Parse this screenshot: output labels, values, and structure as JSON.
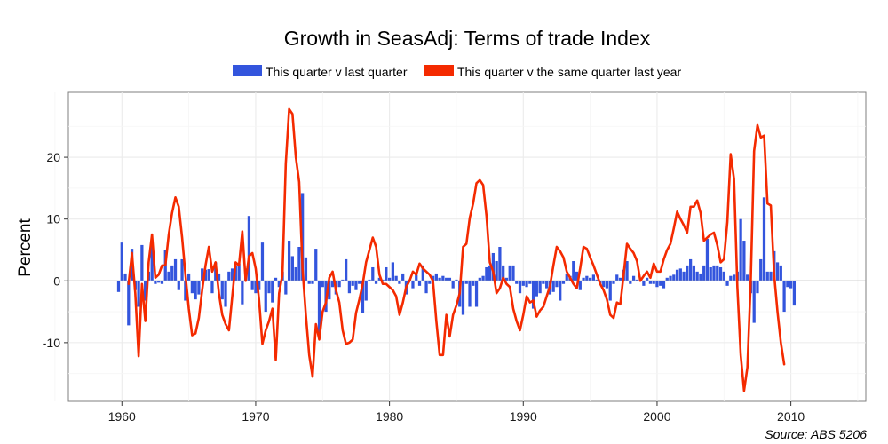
{
  "chart_data": {
    "type": "bar+line",
    "title": "Growth in SeasAdj: Terms of trade Index",
    "xlabel": "",
    "ylabel": "Percent",
    "source": "Source: ABS 5206",
    "xlim": [
      1956,
      2015.6
    ],
    "ylim": [
      -19.5,
      30.5
    ],
    "x_ticks": [
      1960,
      1970,
      1980,
      1990,
      2000,
      2010
    ],
    "x_tick_labels": [
      "1960",
      "1970",
      "1980",
      "1990",
      "2000",
      "2010"
    ],
    "y_ticks": [
      -10,
      0,
      10,
      20
    ],
    "y_tick_labels": [
      "-10",
      "0",
      "10",
      "20"
    ],
    "legend_position": "top",
    "series": [
      {
        "name": "This quarter v last quarter",
        "type": "bar",
        "color": "#3355dd",
        "x_start": 1959.75,
        "x_step": 0.25,
        "values": [
          -1.8,
          6.2,
          1.2,
          -7.2,
          5.2,
          -1.5,
          -4.2,
          5.8,
          -3.2,
          1.5,
          5.8,
          -0.5,
          -0.3,
          -0.5,
          5,
          1.5,
          2.5,
          3.5,
          -1.5,
          3.5,
          -3.2,
          1.2,
          -2,
          -3,
          -2.2,
          2,
          1.8,
          1.9,
          -2,
          3,
          1.2,
          -3,
          -4.2,
          1.5,
          2,
          2.5,
          2.8,
          -3.8,
          2,
          10.5,
          -1.5,
          -2,
          -1.5,
          6.2,
          -5,
          -2,
          -3.5,
          0.5,
          -1,
          1.5,
          -2.2,
          6.5,
          4,
          2.2,
          5.5,
          14.2,
          3.8,
          -0.5,
          -0.5,
          5.2,
          -8.8,
          -1,
          -5,
          -3,
          -1,
          -2.2,
          -1,
          0.2,
          3.5,
          -2,
          -0.8,
          -1.5,
          -0.5,
          -5.2,
          -3.2,
          0.2,
          2.2,
          -0.5,
          0.5,
          0.2,
          2.2,
          0.5,
          3,
          0.8,
          -0.5,
          1.2,
          -2.2,
          0.2,
          -1.2,
          1,
          -0.8,
          2.5,
          -2,
          -0.5,
          0.8,
          1.2,
          0.5,
          0.8,
          0.5,
          0.5,
          -1.2,
          0.2,
          -4.2,
          -5.5,
          -0.5,
          -4.2,
          -0.8,
          -4.2,
          0.5,
          0.8,
          2.2,
          2.5,
          4.5,
          3.2,
          5.5,
          2.5,
          0.5,
          2.5,
          2.5,
          -0.5,
          -2,
          -0.8,
          -1,
          -0.5,
          -4.5,
          -2.5,
          -2,
          -0.5,
          -1.2,
          -2.2,
          -1.8,
          -1,
          -3.2,
          -0.5,
          1.2,
          0.8,
          3.2,
          1.5,
          -1.5,
          0.5,
          0.8,
          0.5,
          1,
          0.2,
          -0.5,
          -1,
          -1.2,
          -3.2,
          -0.5,
          1,
          0.5,
          1.8,
          3.2,
          -0.5,
          0.8,
          0.2,
          0.5,
          -0.8,
          0.5,
          -0.5,
          -0.5,
          -1,
          -0.8,
          -1.2,
          0.5,
          0.8,
          1,
          1.8,
          2,
          1.5,
          2.5,
          3.5,
          2.5,
          1.5,
          1.2,
          2.5,
          6.8,
          2.2,
          2.5,
          2.5,
          2.2,
          1.5,
          -0.8,
          0.8,
          1,
          1.5,
          10,
          6.5,
          1,
          -2,
          -6.8,
          -2,
          3.5,
          13.5,
          1.5,
          1.5,
          4.8,
          3,
          2.5,
          -5,
          -1,
          -1.2,
          -4
        ]
      },
      {
        "name": "This quarter v the same quarter last year",
        "type": "line",
        "color": "#f42a00",
        "x_start": 1960.5,
        "x_step": 0.25,
        "values": [
          -0.5,
          4.5,
          -2,
          -12.2,
          -0.5,
          -6.5,
          3,
          7.5,
          0.5,
          1,
          2.5,
          2.5,
          7.5,
          11,
          13.5,
          12,
          7,
          1,
          -4.5,
          -8.8,
          -8.5,
          -6,
          -1.5,
          2.5,
          5.5,
          1.5,
          3,
          -2,
          -5.5,
          -7,
          -8,
          -2.5,
          3,
          2.5,
          8,
          0,
          4,
          4.5,
          2,
          -3,
          -10.2,
          -8,
          -6.5,
          -4.5,
          -12.8,
          -2,
          1,
          19,
          27.8,
          27,
          20,
          16,
          2,
          -5.5,
          -12,
          -15.5,
          -7,
          -9.5,
          -5,
          -3.5,
          0.5,
          1.5,
          -1.5,
          -3.5,
          -8,
          -10.2,
          -10,
          -9.5,
          -5.2,
          -3,
          -0.5,
          3,
          5,
          7,
          5.5,
          1,
          -0.5,
          -0.5,
          -1,
          -1.5,
          -2.5,
          -5.5,
          -3.5,
          -1,
          0,
          1.5,
          1,
          2.8,
          2,
          1.5,
          1,
          0,
          -6.5,
          -12,
          -12,
          -5.5,
          -9,
          -5.5,
          -4,
          -2,
          5.5,
          6,
          10.2,
          12.5,
          15.8,
          16.3,
          15.5,
          10.5,
          3,
          1.5,
          -2,
          -1.2,
          0.5,
          -0.5,
          -1,
          -4.5,
          -6.5,
          -8,
          -5.5,
          -2.5,
          -3.5,
          -3.2,
          -5.8,
          -4.8,
          -4.2,
          -2.5,
          -0.8,
          2.5,
          5.5,
          4.8,
          3.8,
          1.5,
          0.5,
          -0.5,
          -1.2,
          2,
          5.5,
          5.2,
          3.8,
          2.5,
          1,
          -0.5,
          -1.5,
          -3,
          -5.5,
          -6,
          -3.5,
          -3.8,
          1,
          6,
          5.2,
          4.5,
          3.2,
          0,
          0.8,
          1.5,
          0.5,
          2.8,
          1.5,
          1.5,
          3.5,
          5,
          6,
          8.5,
          11.2,
          10,
          9,
          7.8,
          12,
          12,
          13,
          11,
          6.5,
          7,
          7.5,
          7.8,
          5.8,
          3,
          3.5,
          9.5,
          20.5,
          16.5,
          -1,
          -12,
          -17.8,
          -14,
          0,
          21,
          25.2,
          23.2,
          23.5,
          12.5,
          12.2,
          1,
          -5,
          -10,
          -13.5
        ]
      }
    ]
  }
}
